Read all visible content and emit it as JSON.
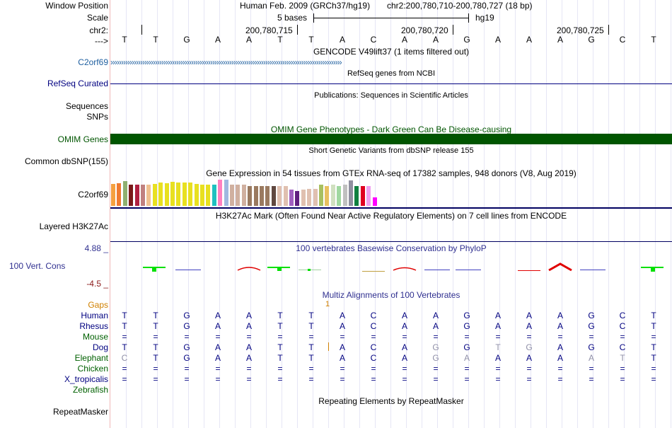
{
  "header": {
    "labels": {
      "window_position": "Window Position",
      "scale": "Scale",
      "chr": "chr2:",
      "strand": "--->"
    },
    "assembly": "Human Feb. 2009 (GRCh37/hg19)",
    "position": "chr2:200,780,710-200,780,727 (18 bp)",
    "scale_text": "5 bases",
    "scale_db": "hg19",
    "coords": [
      "200,780,715",
      "200,780,720",
      "200,780,725"
    ],
    "bases": [
      "T",
      "T",
      "G",
      "A",
      "A",
      "T",
      "T",
      "A",
      "C",
      "A",
      "A",
      "G",
      "A",
      "A",
      "A",
      "G",
      "C",
      "T"
    ]
  },
  "tracks": {
    "gencode": {
      "title": "GENCODE V49lift37 (1 items filtered out)",
      "label": "C2orf69",
      "arrows": "›››››››››››››››››››››››››››››››››››››››››››››››››››››››››››››››››››››››››››››››››››››››››››››››››››››››››››››"
    },
    "refseq": {
      "title": "RefSeq genes from NCBI",
      "label": "RefSeq Curated"
    },
    "publications": {
      "title": "Publications: Sequences in Scientific Articles",
      "label1": "Sequences",
      "label2": "SNPs"
    },
    "omim": {
      "title": "OMIM Gene Phenotypes - Dark Green Can Be Disease-causing",
      "label": "OMIM Genes",
      "color": "#005500"
    },
    "dbsnp": {
      "title": "Short Genetic Variants from dbSNP release 155",
      "label": "Common dbSNP(155)"
    },
    "gtex": {
      "title": "Gene Expression in 54 tissues from GTEx RNA-seq of 17382 samples, 948 donors (V8, Aug 2019)",
      "label": "C2orf69",
      "bars": [
        {
          "c": "#f5a040",
          "v": 0.82
        },
        {
          "c": "#f07a30",
          "v": 0.85
        },
        {
          "c": "#8fb070",
          "v": 0.92
        },
        {
          "c": "#7a1a1a",
          "v": 0.78
        },
        {
          "c": "#b02040",
          "v": 0.8
        },
        {
          "c": "#c08080",
          "v": 0.78
        },
        {
          "c": "#f0c090",
          "v": 0.8
        },
        {
          "c": "#e8e020",
          "v": 0.82
        },
        {
          "c": "#e8e020",
          "v": 0.86
        },
        {
          "c": "#e8e020",
          "v": 0.84
        },
        {
          "c": "#e8e020",
          "v": 0.9
        },
        {
          "c": "#e8e020",
          "v": 0.86
        },
        {
          "c": "#e8e020",
          "v": 0.88
        },
        {
          "c": "#e8e020",
          "v": 0.86
        },
        {
          "c": "#e8e020",
          "v": 0.82
        },
        {
          "c": "#e8e020",
          "v": 0.8
        },
        {
          "c": "#e8e020",
          "v": 0.78
        },
        {
          "c": "#20c0c0",
          "v": 0.78
        },
        {
          "c": "#ff80c0",
          "v": 0.98
        },
        {
          "c": "#a0b8e0",
          "v": 0.98
        },
        {
          "c": "#d0b0a0",
          "v": 0.78
        },
        {
          "c": "#d0b0a0",
          "v": 0.78
        },
        {
          "c": "#d0b0a0",
          "v": 0.78
        },
        {
          "c": "#9a7a60",
          "v": 0.74
        },
        {
          "c": "#9a7a60",
          "v": 0.74
        },
        {
          "c": "#9a7a60",
          "v": 0.74
        },
        {
          "c": "#9a7a60",
          "v": 0.74
        },
        {
          "c": "#604840",
          "v": 0.74
        },
        {
          "c": "#e0c0b0",
          "v": 0.74
        },
        {
          "c": "#e0c0b0",
          "v": 0.74
        },
        {
          "c": "#a060c0",
          "v": 0.6
        },
        {
          "c": "#602080",
          "v": 0.54
        },
        {
          "c": "#e0c0b0",
          "v": 0.6
        },
        {
          "c": "#e0c0b0",
          "v": 0.62
        },
        {
          "c": "#e0c0b0",
          "v": 0.64
        },
        {
          "c": "#a8c060",
          "v": 0.78
        },
        {
          "c": "#e8c060",
          "v": 0.74
        },
        {
          "c": "#d0e0c0",
          "v": 0.78
        },
        {
          "c": "#a0d8a0",
          "v": 0.74
        },
        {
          "c": "#c0c0c0",
          "v": 0.78
        },
        {
          "c": "#9090a0",
          "v": 0.96
        },
        {
          "c": "#108040",
          "v": 0.74
        },
        {
          "c": "#e00020",
          "v": 0.74
        },
        {
          "c": "#f0a0f0",
          "v": 0.74
        },
        {
          "c": "#ff00ff",
          "v": 0.32
        }
      ]
    },
    "h3k27ac": {
      "title": "H3K27Ac Mark (Often Found Near Active Regulatory Elements) on 7 cell lines from ENCODE",
      "label": "Layered H3K27Ac"
    },
    "phylop": {
      "title": "100 vertebrates Basewise Conservation by PhyloP",
      "label": "100 Vert. Cons",
      "max": "4.88 _",
      "min": "-4.5 _"
    },
    "multiz": {
      "title": "Multiz Alignments of 100 Vertebrates",
      "gaps_label": "Gaps",
      "gap_count": "1",
      "species": [
        {
          "name": "Human",
          "color": "#000080",
          "row": [
            "T",
            "T",
            "G",
            "A",
            "A",
            "T",
            "T",
            "A",
            "C",
            "A",
            "A",
            "G",
            "A",
            "A",
            "A",
            "G",
            "C",
            "T"
          ]
        },
        {
          "name": "Rhesus",
          "color": "#000080",
          "row": [
            "T",
            "T",
            "G",
            "A",
            "A",
            "T",
            "T",
            "A",
            "C",
            "A",
            "A",
            "G",
            "A",
            "A",
            "A",
            "G",
            "C",
            "T"
          ]
        },
        {
          "name": "Mouse",
          "color": "#006000",
          "row": [
            "=",
            "=",
            "=",
            "=",
            "=",
            "=",
            "=",
            "=",
            "=",
            "=",
            "=",
            "=",
            "=",
            "=",
            "=",
            "=",
            "=",
            "="
          ]
        },
        {
          "name": "Dog",
          "color": "#000080",
          "row": [
            "T",
            "T",
            "G",
            "A",
            "A",
            "T",
            "T",
            "A",
            "C",
            "A",
            "G",
            "G",
            "T",
            "G",
            "A",
            "G",
            "C",
            "T"
          ]
        },
        {
          "name": "Elephant",
          "color": "#006000",
          "row": [
            "C",
            "T",
            "G",
            "A",
            "A",
            "T",
            "T",
            "A",
            "C",
            "A",
            "G",
            "A",
            "A",
            "A",
            "A",
            "A",
            "T",
            "T"
          ]
        },
        {
          "name": "Chicken",
          "color": "#006000",
          "row": [
            "=",
            "=",
            "=",
            "=",
            "=",
            "=",
            "=",
            "=",
            "=",
            "=",
            "=",
            "=",
            "=",
            "=",
            "=",
            "=",
            "=",
            "="
          ]
        },
        {
          "name": "X_tropicalis",
          "color": "#000080",
          "row": [
            "=",
            "=",
            "=",
            "=",
            "=",
            "=",
            "=",
            "=",
            "=",
            "=",
            "=",
            "=",
            "=",
            "=",
            "=",
            "=",
            "=",
            "="
          ]
        },
        {
          "name": "Zebrafish",
          "color": "#006000",
          "row": [
            "",
            "",
            "",
            "",
            "",
            "",
            "",
            "",
            "",
            "",
            "",
            "",
            "",
            "",
            "",
            "",
            "",
            ""
          ]
        }
      ],
      "dim": [
        [],
        [],
        [],
        [
          10,
          12,
          13
        ],
        [
          0,
          10,
          11,
          15,
          16
        ],
        [],
        [],
        []
      ]
    },
    "repeatmasker": {
      "title": "Repeating Elements by RepeatMasker",
      "label": "RepeatMasker"
    }
  },
  "colors": {
    "gaps": "#d08000",
    "phylop_label": "#303090",
    "refseq": "#000080",
    "gencode": "#2060a0"
  }
}
